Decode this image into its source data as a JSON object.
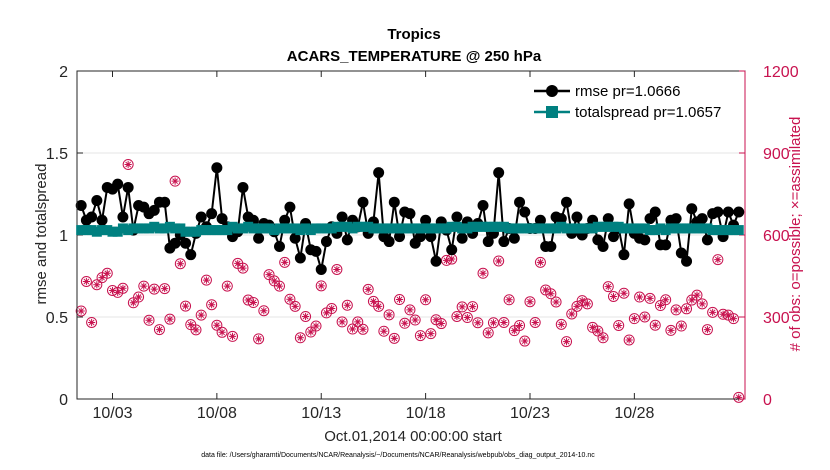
{
  "chart_data": {
    "type": "line",
    "title": "Tropics",
    "subtitle": "ACARS_TEMPERATURE @ 250 hPa",
    "xlabel": "Oct.01,2014 00:00:00 start",
    "ylabel": "rmse and totalspread",
    "y2label": "# of obs: o=possible; ×=assimilated",
    "footnote": "data file: /Users/gharamti/Documents/NCAR/Reanalysis/~/Documents/NCAR/Reanalysis/webpub/obs_diag_output_2014-10.nc",
    "xlim": [
      1.3,
      33.3
    ],
    "ylim": [
      0,
      2
    ],
    "y2lim": [
      0,
      1200
    ],
    "x_ticks": [
      3,
      8,
      13,
      18,
      23,
      28
    ],
    "x_tick_labels": [
      "10/03",
      "10/08",
      "10/13",
      "10/18",
      "10/23",
      "10/28"
    ],
    "y_ticks": [
      0,
      0.5,
      1,
      1.5,
      2
    ],
    "y_tick_labels": [
      "0",
      "0.5",
      "1",
      "1.5",
      "2"
    ],
    "y2_ticks": [
      0,
      300,
      600,
      900,
      1200
    ],
    "y2_tick_labels": [
      "0",
      "300",
      "600",
      "900",
      "1200"
    ],
    "legend": [
      "rmse pr=1.0666",
      "totalspread pr=1.0657"
    ],
    "legend_position": "top-right",
    "colors": {
      "rmse": "#000000",
      "spread": "#008080",
      "obs": "#c8124f",
      "axis": "#262626"
    },
    "x": [
      1.5,
      1.75,
      2.0,
      2.25,
      2.5,
      2.75,
      3.0,
      3.25,
      3.5,
      3.75,
      4.0,
      4.25,
      4.5,
      4.75,
      5.0,
      5.25,
      5.5,
      5.75,
      6.0,
      6.25,
      6.5,
      6.75,
      7.0,
      7.25,
      7.5,
      7.75,
      8.0,
      8.25,
      8.5,
      8.75,
      9.0,
      9.25,
      9.5,
      9.75,
      10.0,
      10.25,
      10.5,
      10.75,
      11.0,
      11.25,
      11.5,
      11.75,
      12.0,
      12.25,
      12.5,
      12.75,
      13.0,
      13.25,
      13.5,
      13.75,
      14.0,
      14.25,
      14.5,
      14.75,
      15.0,
      15.25,
      15.5,
      15.75,
      16.0,
      16.25,
      16.5,
      16.75,
      17.0,
      17.25,
      17.5,
      17.75,
      18.0,
      18.25,
      18.5,
      18.75,
      19.0,
      19.25,
      19.5,
      19.75,
      20.0,
      20.25,
      20.5,
      20.75,
      21.0,
      21.25,
      21.5,
      21.75,
      22.0,
      22.25,
      22.5,
      22.75,
      23.0,
      23.25,
      23.5,
      23.75,
      24.0,
      24.25,
      24.5,
      24.75,
      25.0,
      25.25,
      25.5,
      25.75,
      26.0,
      26.25,
      26.5,
      26.75,
      27.0,
      27.25,
      27.5,
      27.75,
      28.0,
      28.25,
      28.5,
      28.75,
      29.0,
      29.25,
      29.5,
      29.75,
      30.0,
      30.25,
      30.5,
      30.75,
      31.0,
      31.25,
      31.5,
      31.75,
      32.0,
      32.25,
      32.5,
      32.75,
      33.0
    ],
    "series": [
      {
        "name": "rmse",
        "values": [
          1.18,
          1.09,
          1.11,
          1.21,
          1.09,
          1.29,
          1.28,
          1.31,
          1.11,
          1.29,
          1.03,
          1.18,
          1.17,
          1.13,
          1.15,
          1.2,
          1.2,
          0.92,
          0.95,
          1.0,
          0.95,
          0.88,
          1.01,
          1.11,
          1.05,
          1.13,
          1.41,
          1.1,
          1.05,
          0.99,
          1.02,
          1.29,
          1.11,
          1.09,
          0.98,
          1.07,
          1.06,
          1.02,
          0.93,
          1.09,
          1.17,
          0.98,
          0.86,
          1.07,
          0.91,
          0.9,
          0.79,
          0.96,
          1.05,
          1.01,
          1.11,
          0.97,
          1.09,
          1.05,
          1.2,
          1.01,
          1.08,
          1.38,
          0.99,
          0.96,
          1.2,
          0.99,
          1.14,
          1.13,
          0.95,
          0.99,
          1.09,
          0.99,
          0.84,
          1.08,
          1.03,
          0.91,
          1.11,
          0.98,
          1.08,
          1.01,
          1.07,
          1.18,
          0.96,
          1.01,
          1.38,
          0.96,
          1.04,
          0.98,
          1.2,
          1.14,
          1.04,
          1.04,
          1.09,
          0.93,
          0.93,
          1.11,
          1.1,
          1.2,
          1.01,
          1.11,
          1.0,
          1.04,
          1.09,
          0.97,
          0.93,
          1.1,
          0.99,
          1.04,
          0.88,
          1.19,
          1.01,
          0.98,
          0.97,
          1.1,
          1.14,
          0.94,
          0.94,
          1.09,
          1.1,
          0.89,
          0.84,
          1.16,
          1.08,
          1.1,
          0.97,
          1.13,
          1.14,
          0.99,
          1.14,
          1.06,
          1.14
        ]
      },
      {
        "name": "totalspread",
        "values": [
          1.03,
          1.03,
          1.03,
          1.02,
          1.03,
          1.03,
          1.02,
          1.02,
          1.04,
          1.03,
          1.04,
          1.04,
          1.04,
          1.04,
          1.05,
          1.04,
          1.04,
          1.05,
          1.04,
          1.04,
          1.02,
          1.02,
          1.02,
          1.03,
          1.03,
          1.03,
          1.03,
          1.03,
          1.03,
          1.05,
          1.04,
          1.04,
          1.05,
          1.04,
          1.04,
          1.04,
          1.04,
          1.03,
          1.04,
          1.04,
          1.04,
          1.04,
          1.03,
          1.04,
          1.03,
          1.04,
          1.04,
          1.04,
          1.04,
          1.05,
          1.05,
          1.05,
          1.04,
          1.05,
          1.05,
          1.05,
          1.04,
          1.04,
          1.04,
          1.04,
          1.04,
          1.04,
          1.04,
          1.04,
          1.04,
          1.04,
          1.04,
          1.04,
          1.04,
          1.04,
          1.04,
          1.05,
          1.05,
          1.04,
          1.04,
          1.05,
          1.05,
          1.05,
          1.05,
          1.05,
          1.05,
          1.05,
          1.04,
          1.04,
          1.04,
          1.04,
          1.04,
          1.04,
          1.04,
          1.04,
          1.04,
          1.04,
          1.05,
          1.04,
          1.04,
          1.04,
          1.04,
          1.04,
          1.04,
          1.05,
          1.05,
          1.05,
          1.05,
          1.05,
          1.04,
          1.04,
          1.04,
          1.04,
          1.04,
          1.03,
          1.03,
          1.04,
          1.03,
          1.04,
          1.04,
          1.04,
          1.04,
          1.04,
          1.04,
          1.04,
          1.04,
          1.03,
          1.03,
          1.03,
          1.03,
          1.03,
          1.03
        ]
      }
    ],
    "obs_count": [
      322,
      430,
      280,
      418,
      444,
      460,
      397,
      390,
      405,
      858,
      352,
      373,
      413,
      288,
      402,
      254,
      404,
      292,
      797,
      495,
      340,
      272,
      253,
      307,
      435,
      345,
      270,
      244,
      413,
      229,
      496,
      479,
      362,
      353,
      220,
      323,
      455,
      432,
      413,
      500,
      365,
      339,
      224,
      302,
      245,
      267,
      414,
      315,
      331,
      474,
      282,
      343,
      256,
      282,
      255,
      401,
      357,
      339,
      248,
      308,
      222,
      364,
      277,
      326,
      289,
      232,
      363,
      239,
      290,
      276,
      507,
      512,
      302,
      337,
      298,
      338,
      279,
      460,
      242,
      279,
      505,
      280,
      363,
      250,
      269,
      212,
      356,
      280,
      500,
      399,
      385,
      355,
      273,
      210,
      311,
      339,
      360,
      348,
      262,
      249,
      224,
      411,
      375,
      269,
      387,
      216,
      294,
      373,
      300,
      368,
      270,
      342,
      363,
      251,
      326,
      267,
      330,
      362,
      380,
      348,
      254,
      317,
      510,
      310,
      307,
      294,
      6
    ]
  }
}
